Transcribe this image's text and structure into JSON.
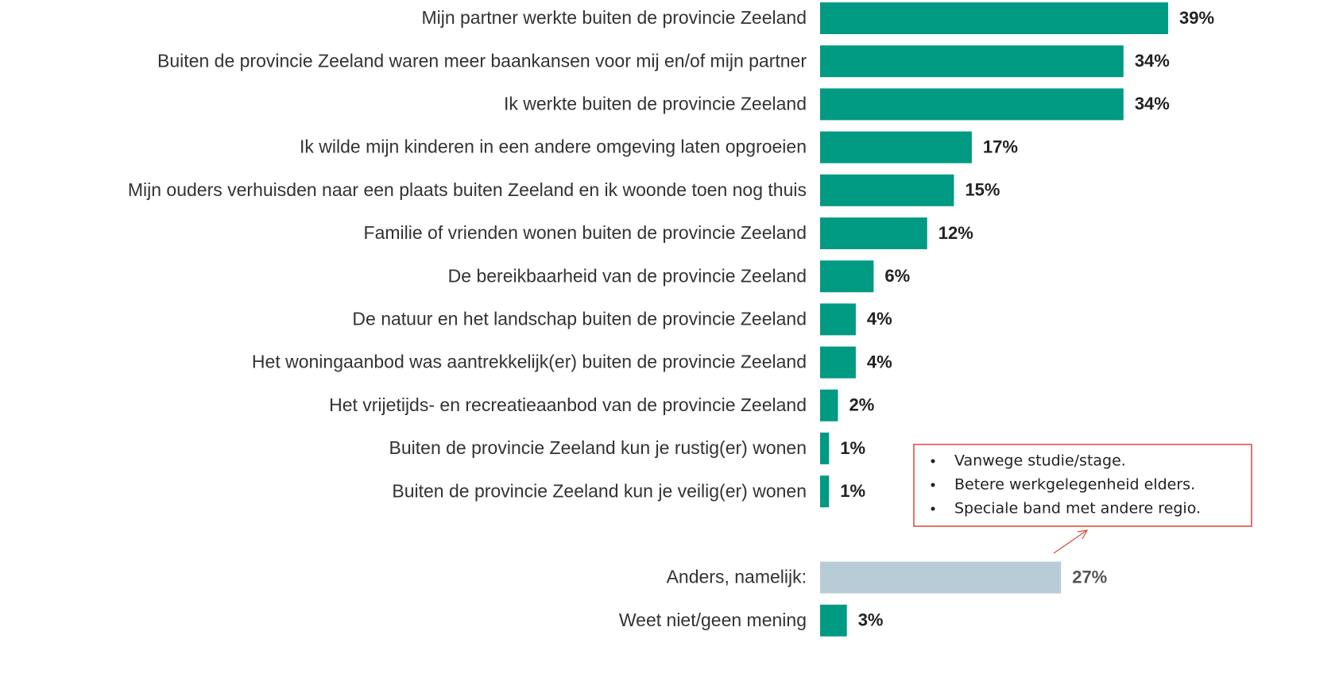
{
  "chart_data": {
    "type": "bar",
    "orientation": "horizontal",
    "categories": [
      "Mijn partner werkte buiten de provincie Zeeland",
      "Buiten de provincie Zeeland waren meer baankansen voor mij en/of mijn partner",
      "Ik werkte buiten de provincie Zeeland",
      "Ik wilde mijn kinderen in een andere omgeving laten opgroeien",
      "Mijn ouders verhuisden naar een plaats buiten Zeeland en ik woonde toen nog thuis",
      "Familie of vrienden wonen buiten de provincie Zeeland",
      "De bereikbaarheid van de provincie Zeeland",
      "De natuur en het landschap buiten de provincie Zeeland",
      "Het woningaanbod was aantrekkelijk(er) buiten de provincie Zeeland",
      "Het vrijetijds- en recreatieaanbod van de provincie Zeeland",
      "Buiten de provincie Zeeland kun je rustig(er) wonen",
      "Buiten de provincie Zeeland kun je veilig(er) wonen",
      null,
      "Anders, namelijk:",
      "Weet niet/geen mening"
    ],
    "values": [
      39,
      34,
      34,
      17,
      15,
      12,
      6,
      4,
      4,
      2,
      1,
      1,
      null,
      27,
      3
    ],
    "value_labels": [
      "39%",
      "34%",
      "34%",
      "17%",
      "15%",
      "12%",
      "6%",
      "4%",
      "4%",
      "2%",
      "1%",
      "1%",
      null,
      "27%",
      "3%"
    ],
    "colors": [
      "#009a83",
      "#009a83",
      "#009a83",
      "#009a83",
      "#009a83",
      "#009a83",
      "#009a83",
      "#009a83",
      "#009a83",
      "#009a83",
      "#009a83",
      "#009a83",
      null,
      "#b8ccd8",
      "#009a83"
    ],
    "annotation": {
      "items": [
        "Vanwege studie/stage.",
        "Betere werkgelegenheid elders.",
        "Speciale band met andere regio."
      ]
    }
  }
}
